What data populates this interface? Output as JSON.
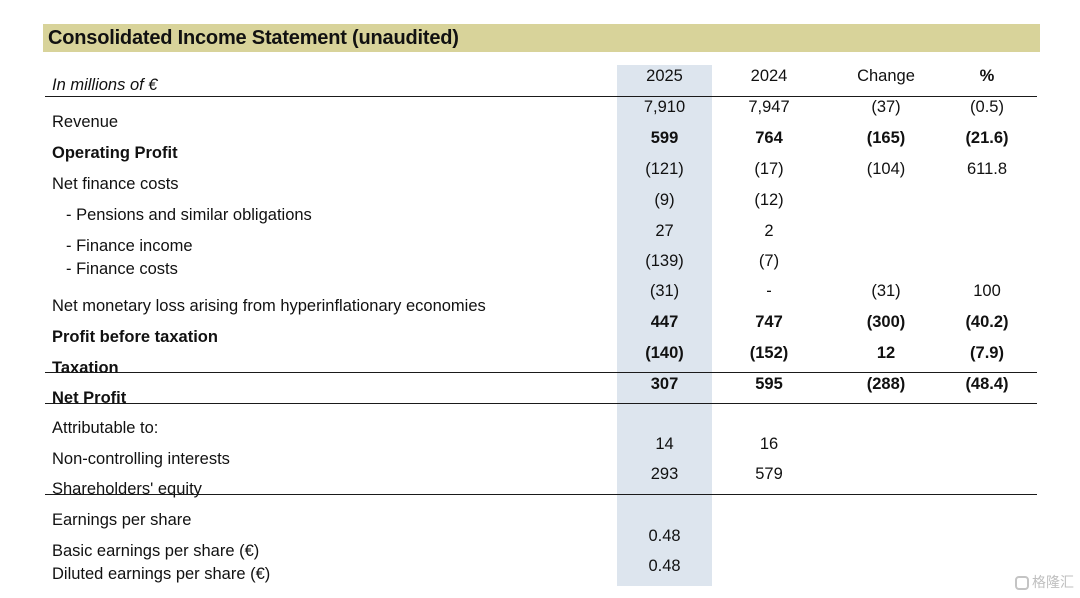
{
  "title": "Consolidated Income Statement (unaudited)",
  "header": {
    "unit_label": "In millions of €",
    "col_2025": "2025",
    "col_2024": "2024",
    "col_change": "Change",
    "col_pct": "%"
  },
  "rows": [
    {
      "label": "Revenue",
      "v2025": "7,910",
      "v2024": "7,947",
      "change": "(37)",
      "pct": "(0.5)"
    },
    {
      "label": "Operating Profit",
      "v2025": "599",
      "v2024": "764",
      "change": "(165)",
      "pct": "(21.6)"
    },
    {
      "label": "Net finance costs",
      "v2025": "(121)",
      "v2024": "(17)",
      "change": "(104)",
      "pct": "611.8"
    },
    {
      "label": "- Pensions and similar obligations",
      "v2025": "(9)",
      "v2024": "(12)",
      "change": "",
      "pct": ""
    },
    {
      "label": "- Finance income",
      "v2025": "27",
      "v2024": "2",
      "change": "",
      "pct": ""
    },
    {
      "label": "- Finance costs",
      "v2025": "(139)",
      "v2024": "(7)",
      "change": "",
      "pct": ""
    },
    {
      "label": "Net monetary loss arising from hyperinflationary economies",
      "v2025": "(31)",
      "v2024": "-",
      "change": "(31)",
      "pct": "100"
    },
    {
      "label": "Profit before taxation",
      "v2025": "447",
      "v2024": "747",
      "change": "(300)",
      "pct": "(40.2)"
    },
    {
      "label": "Taxation",
      "v2025": "(140)",
      "v2024": "(152)",
      "change": "12",
      "pct": "(7.9)"
    },
    {
      "label": "Net Profit",
      "v2025": "307",
      "v2024": "595",
      "change": "(288)",
      "pct": "(48.4)"
    },
    {
      "label": "Attributable to:",
      "v2025": "",
      "v2024": "",
      "change": "",
      "pct": ""
    },
    {
      "label": "Non-controlling interests",
      "v2025": "14",
      "v2024": "16",
      "change": "",
      "pct": ""
    },
    {
      "label": "Shareholders' equity",
      "v2025": "293",
      "v2024": "579",
      "change": "",
      "pct": ""
    },
    {
      "label": "Earnings per share",
      "v2025": "",
      "v2024": "",
      "change": "",
      "pct": ""
    },
    {
      "label": "Basic earnings per share (€)",
      "v2025": "0.48",
      "v2024": "",
      "change": "",
      "pct": ""
    },
    {
      "label": "Diluted earnings per share (€)",
      "v2025": "0.48",
      "v2024": "",
      "change": "",
      "pct": ""
    }
  ],
  "watermark": "格隆汇"
}
